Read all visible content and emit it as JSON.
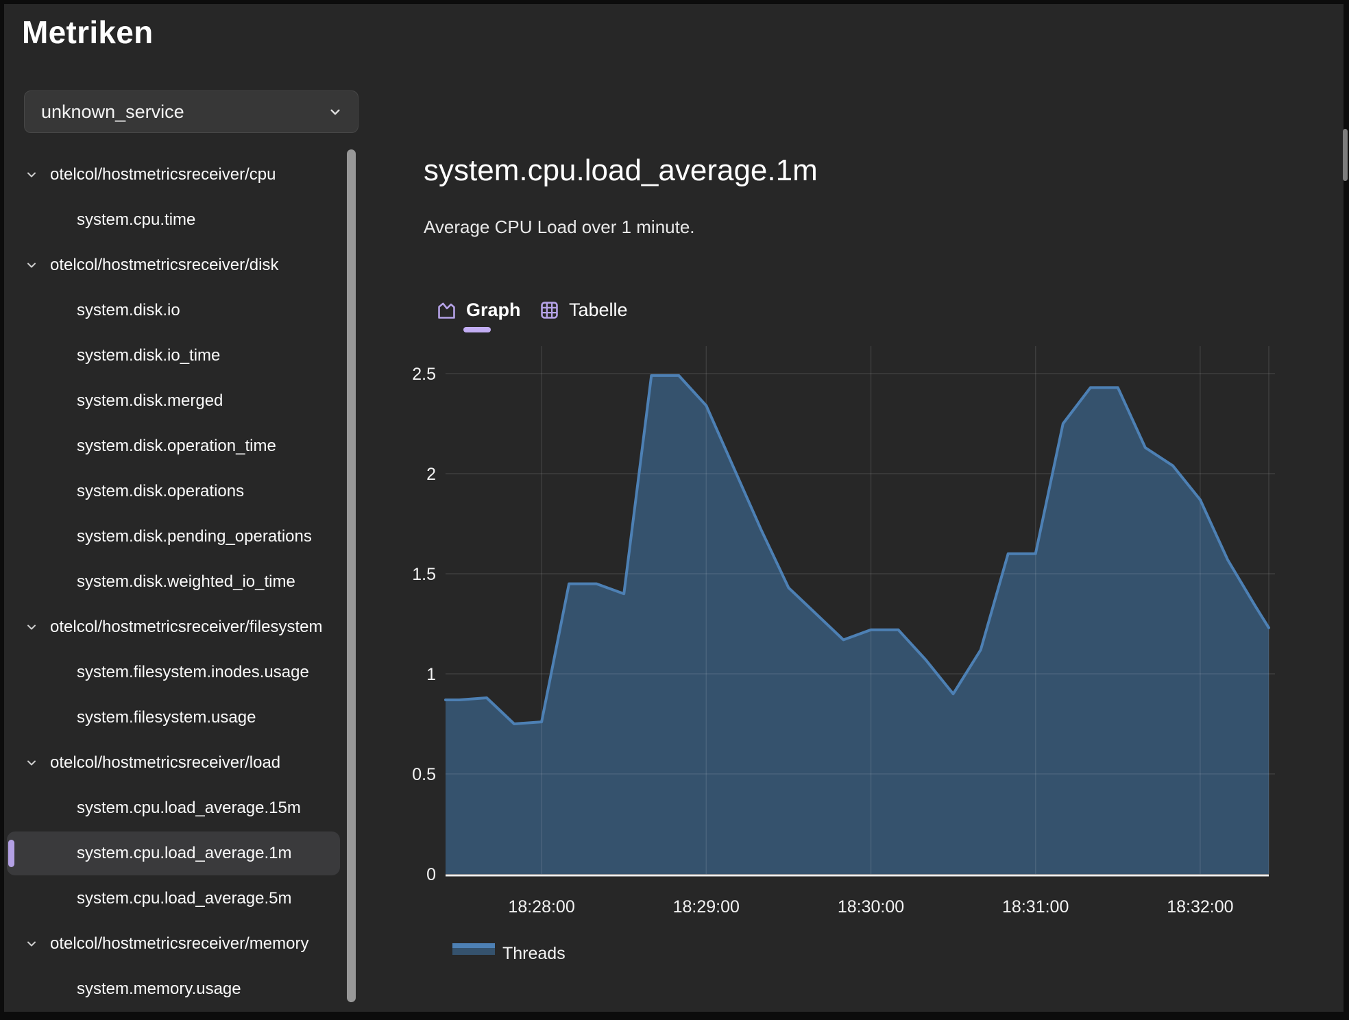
{
  "window": {
    "title": "Metriken"
  },
  "colors": {
    "background": "#272727",
    "panel": "#373737",
    "accent_purple": "#b6a3e8",
    "tab_underline": "#c2adf3",
    "selected_pill": "#b3a0e4",
    "chart_line": "#4d80b4",
    "chart_fill": "#35526d"
  },
  "sidebar": {
    "service_selector": {
      "value": "unknown_service",
      "icon": "chevron-down-icon"
    },
    "tree": [
      {
        "label": "otelcol/hostmetricsreceiver/cpu",
        "type": "group",
        "expanded": true
      },
      {
        "label": "system.cpu.time",
        "type": "leaf"
      },
      {
        "label": "otelcol/hostmetricsreceiver/disk",
        "type": "group",
        "expanded": true
      },
      {
        "label": "system.disk.io",
        "type": "leaf"
      },
      {
        "label": "system.disk.io_time",
        "type": "leaf"
      },
      {
        "label": "system.disk.merged",
        "type": "leaf"
      },
      {
        "label": "system.disk.operation_time",
        "type": "leaf"
      },
      {
        "label": "system.disk.operations",
        "type": "leaf"
      },
      {
        "label": "system.disk.pending_operations",
        "type": "leaf"
      },
      {
        "label": "system.disk.weighted_io_time",
        "type": "leaf"
      },
      {
        "label": "otelcol/hostmetricsreceiver/filesystem",
        "type": "group",
        "expanded": true
      },
      {
        "label": "system.filesystem.inodes.usage",
        "type": "leaf"
      },
      {
        "label": "system.filesystem.usage",
        "type": "leaf"
      },
      {
        "label": "otelcol/hostmetricsreceiver/load",
        "type": "group",
        "expanded": true
      },
      {
        "label": "system.cpu.load_average.15m",
        "type": "leaf"
      },
      {
        "label": "system.cpu.load_average.1m",
        "type": "leaf",
        "selected": true
      },
      {
        "label": "system.cpu.load_average.5m",
        "type": "leaf"
      },
      {
        "label": "otelcol/hostmetricsreceiver/memory",
        "type": "group",
        "expanded": true
      },
      {
        "label": "system.memory.usage",
        "type": "leaf"
      }
    ]
  },
  "main": {
    "title": "system.cpu.load_average.1m",
    "description": "Average CPU Load over 1 minute.",
    "tabs": [
      {
        "label": "Graph",
        "icon": "area-chart-icon",
        "active": true
      },
      {
        "label": "Tabelle",
        "icon": "table-icon",
        "active": false
      }
    ]
  },
  "chart_data": {
    "type": "area",
    "title": "system.cpu.load_average.1m",
    "xlabel": "",
    "ylabel": "",
    "ylim": [
      0,
      2.6
    ],
    "y_ticks": [
      0,
      0.5,
      1,
      1.5,
      2,
      2.5
    ],
    "x_domain_s": [
      0,
      300
    ],
    "x_domain_start_time": "18:27:25",
    "x_tick_labels": [
      "18:28:00",
      "18:29:00",
      "18:30:00",
      "18:31:00",
      "18:32:00"
    ],
    "x_tick_times_s": [
      35,
      95,
      155,
      215,
      275
    ],
    "grid": true,
    "legend_position": "bottom-left",
    "legend": [
      {
        "label": "Threads"
      }
    ],
    "series": [
      {
        "name": "Threads",
        "color_line": "#4d80b4",
        "color_fill": "#35526d",
        "first_sample": "18:27:30",
        "last_sample": "18:32:20",
        "sample_interval_seconds": 10,
        "times_s": [
          0,
          5,
          15,
          25,
          35,
          45,
          55,
          65,
          75,
          85,
          95,
          105,
          115,
          125,
          135,
          145,
          155,
          165,
          175,
          185,
          195,
          205,
          215,
          225,
          235,
          245,
          255,
          265,
          275,
          285,
          295,
          300
        ],
        "values": [
          0.87,
          0.87,
          0.88,
          0.75,
          0.76,
          1.45,
          1.45,
          1.4,
          2.49,
          2.49,
          2.34,
          2.03,
          1.72,
          1.43,
          1.3,
          1.17,
          1.22,
          1.22,
          1.07,
          0.9,
          1.12,
          1.6,
          1.6,
          2.25,
          2.43,
          2.43,
          2.13,
          2.04,
          1.87,
          1.57,
          1.34,
          1.23
        ]
      }
    ]
  }
}
